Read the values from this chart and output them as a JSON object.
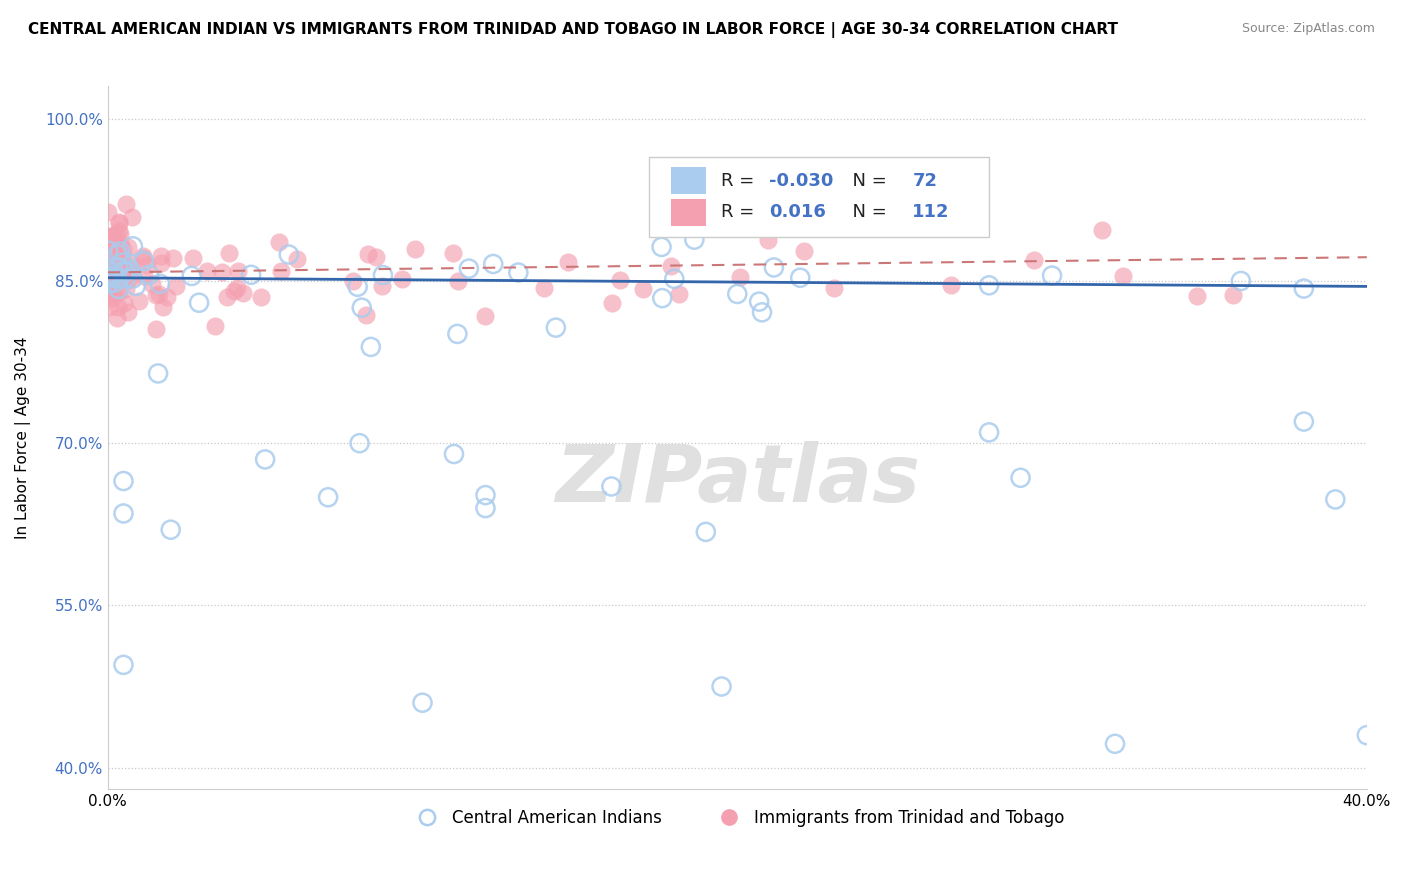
{
  "title": "CENTRAL AMERICAN INDIAN VS IMMIGRANTS FROM TRINIDAD AND TOBAGO IN LABOR FORCE | AGE 30-34 CORRELATION CHART",
  "source": "Source: ZipAtlas.com",
  "ylabel": "In Labor Force | Age 30-34",
  "xlim": [
    0.0,
    0.4
  ],
  "ylim": [
    0.38,
    1.03
  ],
  "yticks": [
    0.4,
    0.55,
    0.7,
    0.85,
    1.0
  ],
  "ytick_labels": [
    "40.0%",
    "55.0%",
    "70.0%",
    "85.0%",
    "100.0%"
  ],
  "xticks": [
    0.0,
    0.1,
    0.2,
    0.3,
    0.4
  ],
  "xtick_labels": [
    "0.0%",
    "",
    "",
    "",
    "40.0%"
  ],
  "legend_label1": "Central American Indians",
  "legend_label2": "Immigrants from Trinidad and Tobago",
  "R1": -0.03,
  "N1": 72,
  "R2": 0.016,
  "N2": 112,
  "color_blue": "#aaccee",
  "color_pink": "#f4a0b0",
  "line_color_blue": "#3366aa",
  "line_color_pink": "#cc7777",
  "watermark": "ZIPatlas",
  "blue_line_y0": 0.853,
  "blue_line_y1": 0.845,
  "pink_line_y0": 0.858,
  "pink_line_y1": 0.872
}
